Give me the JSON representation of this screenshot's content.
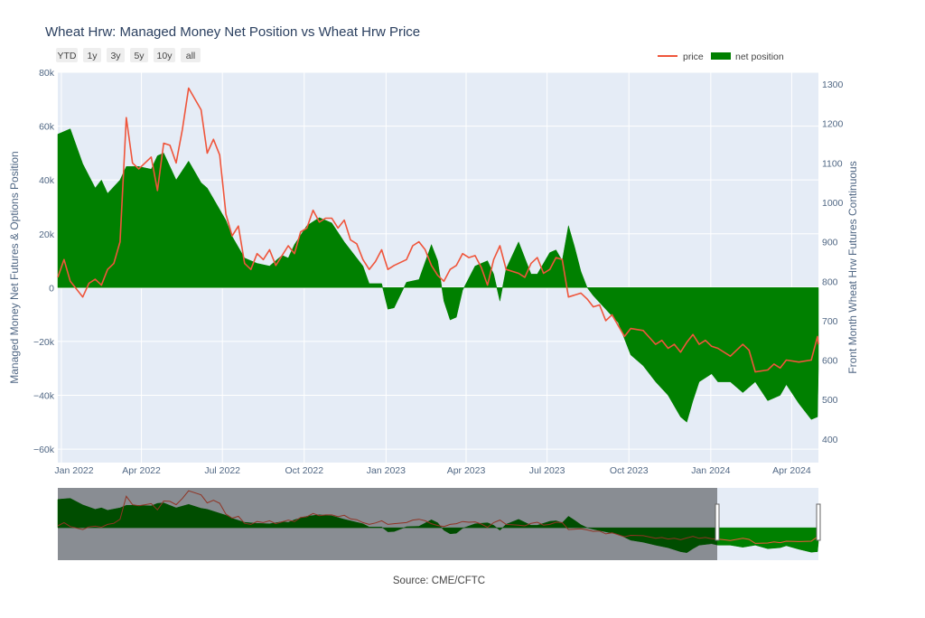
{
  "title": "Wheat Hrw: Managed Money Net Position vs Wheat Hrw Price",
  "source": "Source: CME/CFTC",
  "range_buttons": [
    "YTD",
    "1y",
    "3y",
    "5y",
    "10y",
    "all"
  ],
  "chart_data": {
    "type": "line",
    "title": "Wheat Hrw: Managed Money Net Position vs Wheat Hrw Price",
    "legend": [
      "price",
      "net position"
    ],
    "legend_position": "top-right",
    "colors": {
      "price": "#ef553b",
      "net_position": "#008000",
      "plot_bg": "#e5ecf6",
      "grid": "#ffffff"
    },
    "x_ticks": [
      {
        "date": "2022-01-01",
        "label": "Jan 2022"
      },
      {
        "date": "2022-04-01",
        "label": "Apr 2022"
      },
      {
        "date": "2022-07-01",
        "label": "Jul 2022"
      },
      {
        "date": "2022-10-01",
        "label": "Oct 2022"
      },
      {
        "date": "2023-01-01",
        "label": "Jan 2023"
      },
      {
        "date": "2023-04-01",
        "label": "Apr 2023"
      },
      {
        "date": "2023-07-01",
        "label": "Jul 2023"
      },
      {
        "date": "2023-10-01",
        "label": "Oct 2023"
      },
      {
        "date": "2024-01-01",
        "label": "Jan 2024"
      },
      {
        "date": "2024-04-01",
        "label": "Apr 2024"
      }
    ],
    "x_range": [
      "2021-12-28",
      "2024-05-01"
    ],
    "y_left": {
      "title": "Managed Money Net Futures & Options Position",
      "range": [
        -65000,
        80000
      ],
      "ticks": [
        {
          "v": -60000,
          "label": "−60k"
        },
        {
          "v": -40000,
          "label": "−40k"
        },
        {
          "v": -20000,
          "label": "−20k"
        },
        {
          "v": 0,
          "label": "0"
        },
        {
          "v": 20000,
          "label": "20k"
        },
        {
          "v": 40000,
          "label": "40k"
        },
        {
          "v": 60000,
          "label": "60k"
        },
        {
          "v": 80000,
          "label": "80k"
        }
      ]
    },
    "y_right": {
      "title": "Front Month Wheat Hrw Futures Continuous",
      "range": [
        340,
        1330
      ],
      "ticks": [
        {
          "v": 400,
          "label": "400"
        },
        {
          "v": 500,
          "label": "500"
        },
        {
          "v": 600,
          "label": "600"
        },
        {
          "v": 700,
          "label": "700"
        },
        {
          "v": 800,
          "label": "800"
        },
        {
          "v": 900,
          "label": "900"
        },
        {
          "v": 1000,
          "label": "1000"
        },
        {
          "v": 1100,
          "label": "1100"
        },
        {
          "v": 1200,
          "label": "1200"
        },
        {
          "v": 1300,
          "label": "1300"
        }
      ]
    },
    "series": [
      {
        "name": "net position",
        "type": "area",
        "points": [
          [
            "2021-12-28",
            57000
          ],
          [
            "2022-01-11",
            59000
          ],
          [
            "2022-01-25",
            46000
          ],
          [
            "2022-02-08",
            37000
          ],
          [
            "2022-02-15",
            40000
          ],
          [
            "2022-02-22",
            35000
          ],
          [
            "2022-03-08",
            40000
          ],
          [
            "2022-03-15",
            45000
          ],
          [
            "2022-03-29",
            45000
          ],
          [
            "2022-04-12",
            44000
          ],
          [
            "2022-04-19",
            49000
          ],
          [
            "2022-04-26",
            50000
          ],
          [
            "2022-05-10",
            40000
          ],
          [
            "2022-05-24",
            47000
          ],
          [
            "2022-06-07",
            39000
          ],
          [
            "2022-06-14",
            37000
          ],
          [
            "2022-06-21",
            33000
          ],
          [
            "2022-07-05",
            25000
          ],
          [
            "2022-07-12",
            19000
          ],
          [
            "2022-07-26",
            11000
          ],
          [
            "2022-08-09",
            9000
          ],
          [
            "2022-08-23",
            8000
          ],
          [
            "2022-09-06",
            12000
          ],
          [
            "2022-09-13",
            11000
          ],
          [
            "2022-09-20",
            16000
          ],
          [
            "2022-10-04",
            23000
          ],
          [
            "2022-10-18",
            26000
          ],
          [
            "2022-11-01",
            24000
          ],
          [
            "2022-11-15",
            17000
          ],
          [
            "2022-12-06",
            8000
          ],
          [
            "2022-12-13",
            1500
          ],
          [
            "2022-12-27",
            1500
          ],
          [
            "2023-01-03",
            -8000
          ],
          [
            "2023-01-10",
            -7500
          ],
          [
            "2023-01-24",
            2000
          ],
          [
            "2023-02-07",
            3000
          ],
          [
            "2023-02-21",
            16000
          ],
          [
            "2023-02-28",
            10000
          ],
          [
            "2023-03-07",
            -5000
          ],
          [
            "2023-03-14",
            -12000
          ],
          [
            "2023-03-21",
            -11000
          ],
          [
            "2023-03-28",
            -1000
          ],
          [
            "2023-04-11",
            8000
          ],
          [
            "2023-04-25",
            10000
          ],
          [
            "2023-05-02",
            5000
          ],
          [
            "2023-05-09",
            -5000
          ],
          [
            "2023-05-16",
            7000
          ],
          [
            "2023-05-30",
            17000
          ],
          [
            "2023-06-13",
            5000
          ],
          [
            "2023-06-20",
            5000
          ],
          [
            "2023-07-04",
            13000
          ],
          [
            "2023-07-11",
            14000
          ],
          [
            "2023-07-18",
            10000
          ],
          [
            "2023-07-25",
            23000
          ],
          [
            "2023-08-01",
            15000
          ],
          [
            "2023-08-08",
            6000
          ],
          [
            "2023-08-15",
            0
          ],
          [
            "2023-08-22",
            -3000
          ],
          [
            "2023-09-05",
            -8000
          ],
          [
            "2023-09-19",
            -13000
          ],
          [
            "2023-10-03",
            -25000
          ],
          [
            "2023-10-17",
            -29000
          ],
          [
            "2023-10-31",
            -35000
          ],
          [
            "2023-11-14",
            -40000
          ],
          [
            "2023-11-28",
            -48000
          ],
          [
            "2023-12-05",
            -50000
          ],
          [
            "2023-12-12",
            -42000
          ],
          [
            "2023-12-19",
            -35000
          ],
          [
            "2024-01-02",
            -32000
          ],
          [
            "2024-01-09",
            -35000
          ],
          [
            "2024-01-23",
            -35000
          ],
          [
            "2024-02-06",
            -39000
          ],
          [
            "2024-02-20",
            -35000
          ],
          [
            "2024-03-05",
            -42000
          ],
          [
            "2024-03-19",
            -40000
          ],
          [
            "2024-03-26",
            -36000
          ],
          [
            "2024-04-09",
            -43000
          ],
          [
            "2024-04-23",
            -49000
          ],
          [
            "2024-04-30",
            -48000
          ],
          [
            "2024-05-01",
            -30000
          ]
        ]
      },
      {
        "name": "price",
        "type": "line",
        "points": [
          [
            "2021-12-28",
            810
          ],
          [
            "2022-01-04",
            855
          ],
          [
            "2022-01-11",
            800
          ],
          [
            "2022-01-25",
            760
          ],
          [
            "2022-02-01",
            795
          ],
          [
            "2022-02-08",
            805
          ],
          [
            "2022-02-15",
            790
          ],
          [
            "2022-02-22",
            830
          ],
          [
            "2022-03-01",
            845
          ],
          [
            "2022-03-08",
            900
          ],
          [
            "2022-03-15",
            1215
          ],
          [
            "2022-03-22",
            1100
          ],
          [
            "2022-03-29",
            1085
          ],
          [
            "2022-04-05",
            1100
          ],
          [
            "2022-04-12",
            1115
          ],
          [
            "2022-04-19",
            1030
          ],
          [
            "2022-04-26",
            1150
          ],
          [
            "2022-05-03",
            1145
          ],
          [
            "2022-05-10",
            1100
          ],
          [
            "2022-05-17",
            1185
          ],
          [
            "2022-05-24",
            1290
          ],
          [
            "2022-06-07",
            1235
          ],
          [
            "2022-06-14",
            1125
          ],
          [
            "2022-06-21",
            1160
          ],
          [
            "2022-06-28",
            1120
          ],
          [
            "2022-07-05",
            970
          ],
          [
            "2022-07-12",
            915
          ],
          [
            "2022-07-19",
            940
          ],
          [
            "2022-07-26",
            845
          ],
          [
            "2022-08-02",
            830
          ],
          [
            "2022-08-09",
            870
          ],
          [
            "2022-08-16",
            855
          ],
          [
            "2022-08-23",
            880
          ],
          [
            "2022-08-30",
            840
          ],
          [
            "2022-09-13",
            890
          ],
          [
            "2022-09-20",
            870
          ],
          [
            "2022-09-27",
            925
          ],
          [
            "2022-10-04",
            935
          ],
          [
            "2022-10-11",
            980
          ],
          [
            "2022-10-18",
            950
          ],
          [
            "2022-10-25",
            960
          ],
          [
            "2022-11-01",
            960
          ],
          [
            "2022-11-08",
            935
          ],
          [
            "2022-11-15",
            955
          ],
          [
            "2022-11-22",
            905
          ],
          [
            "2022-11-29",
            895
          ],
          [
            "2022-12-06",
            855
          ],
          [
            "2022-12-13",
            830
          ],
          [
            "2022-12-20",
            850
          ],
          [
            "2022-12-27",
            880
          ],
          [
            "2023-01-03",
            830
          ],
          [
            "2023-01-10",
            840
          ],
          [
            "2023-01-24",
            855
          ],
          [
            "2023-01-31",
            890
          ],
          [
            "2023-02-07",
            900
          ],
          [
            "2023-02-14",
            880
          ],
          [
            "2023-02-21",
            840
          ],
          [
            "2023-02-28",
            815
          ],
          [
            "2023-03-07",
            800
          ],
          [
            "2023-03-14",
            830
          ],
          [
            "2023-03-21",
            840
          ],
          [
            "2023-03-28",
            870
          ],
          [
            "2023-04-04",
            860
          ],
          [
            "2023-04-11",
            865
          ],
          [
            "2023-04-18",
            835
          ],
          [
            "2023-04-25",
            790
          ],
          [
            "2023-05-02",
            855
          ],
          [
            "2023-05-09",
            890
          ],
          [
            "2023-05-16",
            830
          ],
          [
            "2023-05-30",
            820
          ],
          [
            "2023-06-06",
            810
          ],
          [
            "2023-06-13",
            845
          ],
          [
            "2023-06-20",
            860
          ],
          [
            "2023-06-27",
            820
          ],
          [
            "2023-07-04",
            830
          ],
          [
            "2023-07-11",
            860
          ],
          [
            "2023-07-18",
            855
          ],
          [
            "2023-07-25",
            760
          ],
          [
            "2023-08-08",
            770
          ],
          [
            "2023-08-15",
            755
          ],
          [
            "2023-08-22",
            735
          ],
          [
            "2023-08-29",
            740
          ],
          [
            "2023-09-05",
            700
          ],
          [
            "2023-09-12",
            715
          ],
          [
            "2023-09-26",
            660
          ],
          [
            "2023-10-03",
            680
          ],
          [
            "2023-10-17",
            675
          ],
          [
            "2023-10-31",
            640
          ],
          [
            "2023-11-07",
            650
          ],
          [
            "2023-11-14",
            630
          ],
          [
            "2023-11-21",
            640
          ],
          [
            "2023-11-28",
            620
          ],
          [
            "2023-12-05",
            645
          ],
          [
            "2023-12-12",
            665
          ],
          [
            "2023-12-19",
            640
          ],
          [
            "2023-12-26",
            650
          ],
          [
            "2024-01-02",
            635
          ],
          [
            "2024-01-09",
            630
          ],
          [
            "2024-01-23",
            610
          ],
          [
            "2024-02-06",
            640
          ],
          [
            "2024-02-13",
            625
          ],
          [
            "2024-02-20",
            570
          ],
          [
            "2024-03-05",
            575
          ],
          [
            "2024-03-12",
            590
          ],
          [
            "2024-03-19",
            580
          ],
          [
            "2024-03-26",
            600
          ],
          [
            "2024-04-09",
            595
          ],
          [
            "2024-04-23",
            600
          ],
          [
            "2024-04-30",
            660
          ],
          [
            "2024-05-01",
            640
          ]
        ]
      }
    ],
    "navigator": {
      "selected_range": [
        "2021-12-28",
        "2024-05-01"
      ]
    },
    "grid": true
  }
}
